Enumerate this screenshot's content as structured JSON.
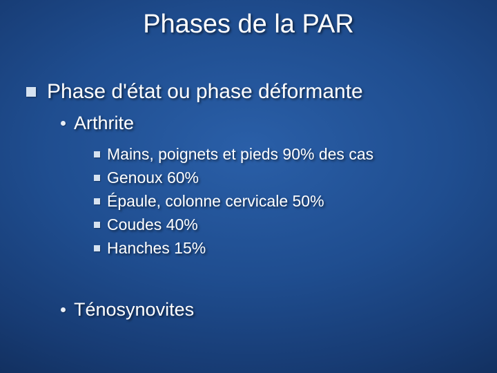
{
  "background": {
    "gradient_center": "#2a5fa8",
    "gradient_mid": "#173b73",
    "gradient_edge": "#081b3a"
  },
  "text_color": "#ffffff",
  "bullet_color": "#d6e2f0",
  "title": "Phases de la PAR",
  "lvl1": "Phase d'état ou phase déformante",
  "lvl2a": "Arthrite",
  "lvl2b": "Ténosynovites",
  "lvl3": {
    "i0": "Mains, poignets et pieds 90% des cas",
    "i1": "Genoux 60%",
    "i2": "Épaule, colonne cervicale 50%",
    "i3": "Coudes 40%",
    "i4": "Hanches 15%"
  },
  "fonts": {
    "title_size": 38,
    "lvl1_size": 30,
    "lvl2_size": 27,
    "lvl3_size": 23
  }
}
